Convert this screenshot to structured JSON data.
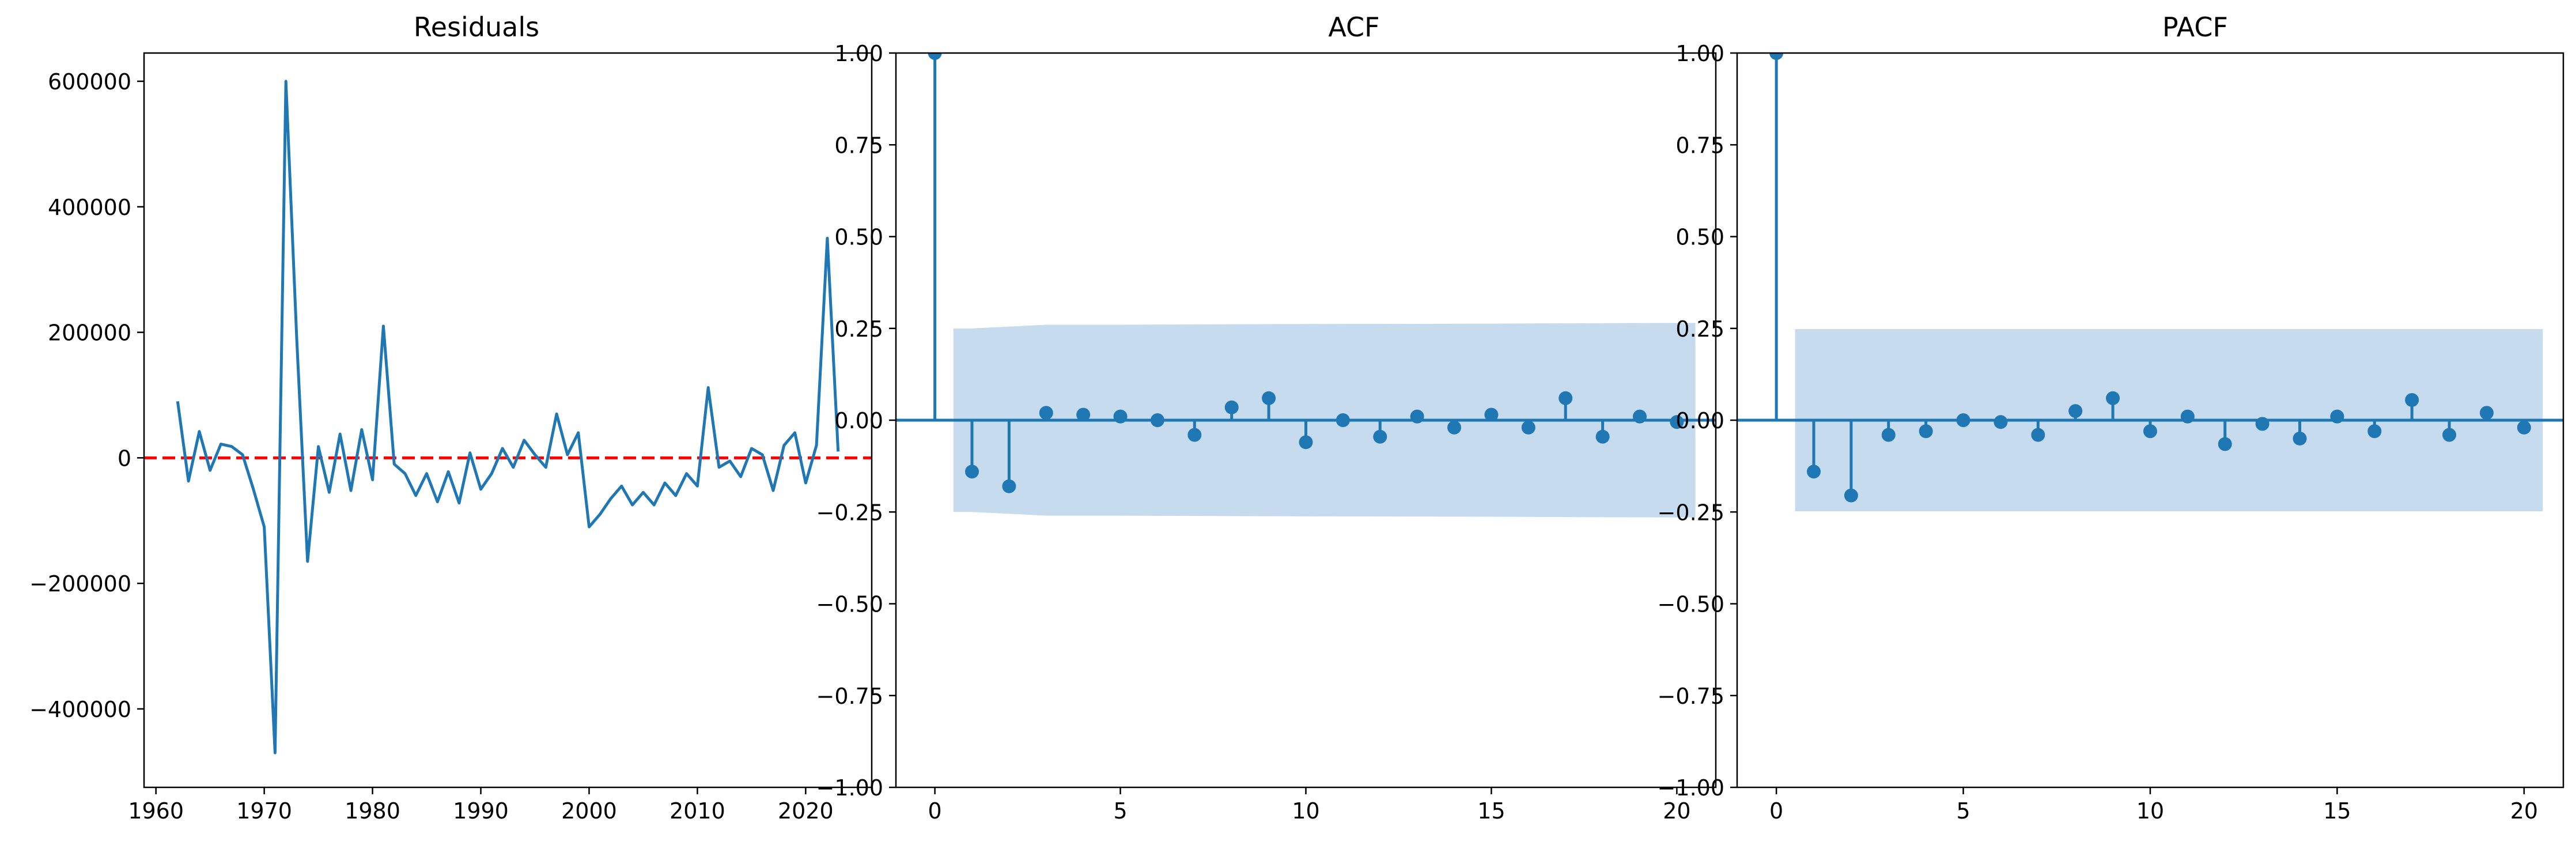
{
  "colors": {
    "series": "#1f77b4",
    "band": "#c6dbed",
    "zero_line": "#ff0000",
    "axis": "#000000",
    "background": "#ffffff"
  },
  "chart_data": [
    {
      "type": "line",
      "title": "Residuals",
      "xlabel": "",
      "ylabel": "",
      "xlim": [
        1958.9,
        2026.1
      ],
      "ylim": [
        -525000,
        645000
      ],
      "xticks": [
        1960,
        1970,
        1980,
        1990,
        2000,
        2010,
        2020
      ],
      "xtick_labels": [
        "1960",
        "1970",
        "1980",
        "1990",
        "2000",
        "2010",
        "2020"
      ],
      "yticks": [
        -400000,
        -200000,
        0,
        200000,
        400000,
        600000
      ],
      "ytick_labels": [
        "−400000",
        "−200000",
        "0",
        "200000",
        "400000",
        "600000"
      ],
      "grid": false,
      "reference_line": {
        "y": 0,
        "style": "dashed",
        "color": "#ff0000"
      },
      "series": [
        {
          "x": [
            1962,
            1963,
            1964,
            1965,
            1966,
            1967,
            1968,
            1969,
            1970,
            1971,
            1972,
            1973,
            1974,
            1975,
            1976,
            1977,
            1978,
            1979,
            1980,
            1981,
            1982,
            1983,
            1984,
            1985,
            1986,
            1987,
            1988,
            1989,
            1990,
            1991,
            1992,
            1993,
            1994,
            1995,
            1996,
            1997,
            1998,
            1999,
            2000,
            2001,
            2002,
            2003,
            2004,
            2005,
            2006,
            2007,
            2008,
            2009,
            2010,
            2011,
            2012,
            2013,
            2014,
            2015,
            2016,
            2017,
            2018,
            2019,
            2020,
            2021,
            2022,
            2023
          ],
          "values": [
            90000,
            -37000,
            42000,
            -20000,
            22000,
            18000,
            5000,
            -50000,
            -110000,
            -470000,
            600000,
            190000,
            -165000,
            18000,
            -55000,
            38000,
            -52000,
            45000,
            -35000,
            210000,
            -10000,
            -25000,
            -60000,
            -25000,
            -70000,
            -22000,
            -72000,
            8000,
            -50000,
            -25000,
            15000,
            -15000,
            28000,
            5000,
            -15000,
            70000,
            5000,
            40000,
            -110000,
            -90000,
            -65000,
            -45000,
            -75000,
            -55000,
            -75000,
            -40000,
            -60000,
            -25000,
            -45000,
            112000,
            -15000,
            -5000,
            -30000,
            15000,
            5000,
            -52000,
            20000,
            40000,
            -40000,
            20000,
            350000,
            10000
          ]
        }
      ]
    },
    {
      "type": "stem",
      "title": "ACF",
      "xlabel": "",
      "ylabel": "",
      "xlim": [
        -1.05,
        21.05
      ],
      "ylim": [
        -1.0,
        1.0
      ],
      "xticks": [
        0,
        5,
        10,
        15,
        20
      ],
      "xtick_labels": [
        "0",
        "5",
        "10",
        "15",
        "20"
      ],
      "yticks": [
        -1.0,
        -0.75,
        -0.5,
        -0.25,
        0.0,
        0.25,
        0.5,
        0.75,
        1.0
      ],
      "ytick_labels": [
        "−1.00",
        "−0.75",
        "−0.50",
        "−0.25",
        "0.00",
        "0.25",
        "0.50",
        "0.75",
        "1.00"
      ],
      "grid": false,
      "lags": [
        0,
        1,
        2,
        3,
        4,
        5,
        6,
        7,
        8,
        9,
        10,
        11,
        12,
        13,
        14,
        15,
        16,
        17,
        18,
        19,
        20
      ],
      "values": [
        1.0,
        -0.14,
        -0.18,
        0.02,
        0.015,
        0.01,
        0.0,
        -0.04,
        0.035,
        0.06,
        -0.06,
        0.0,
        -0.045,
        0.01,
        -0.02,
        0.015,
        -0.02,
        0.06,
        -0.045,
        0.01,
        -0.005
      ],
      "confidence_band": {
        "x": [
          0.5,
          1,
          2,
          3,
          4,
          5,
          10,
          15,
          20,
          20.5
        ],
        "upper": [
          0.25,
          0.25,
          0.255,
          0.26,
          0.26,
          0.26,
          0.262,
          0.263,
          0.265,
          0.265
        ]
      }
    },
    {
      "type": "stem",
      "title": "PACF",
      "xlabel": "",
      "ylabel": "",
      "xlim": [
        -1.05,
        21.05
      ],
      "ylim": [
        -1.0,
        1.0
      ],
      "xticks": [
        0,
        5,
        10,
        15,
        20
      ],
      "xtick_labels": [
        "0",
        "5",
        "10",
        "15",
        "20"
      ],
      "yticks": [
        -1.0,
        -0.75,
        -0.5,
        -0.25,
        0.0,
        0.25,
        0.5,
        0.75,
        1.0
      ],
      "ytick_labels": [
        "−1.00",
        "−0.75",
        "−0.50",
        "−0.25",
        "0.00",
        "0.25",
        "0.50",
        "0.75",
        "1.00"
      ],
      "grid": false,
      "lags": [
        0,
        1,
        2,
        3,
        4,
        5,
        6,
        7,
        8,
        9,
        10,
        11,
        12,
        13,
        14,
        15,
        16,
        17,
        18,
        19,
        20
      ],
      "values": [
        1.0,
        -0.14,
        -0.205,
        -0.04,
        -0.03,
        0.0,
        -0.005,
        -0.04,
        0.025,
        0.06,
        -0.03,
        0.01,
        -0.065,
        -0.01,
        -0.05,
        0.01,
        -0.03,
        0.055,
        -0.04,
        0.02,
        -0.02
      ],
      "confidence_band": {
        "x": [
          0.5,
          20.5
        ],
        "upper": [
          0.248,
          0.248
        ]
      }
    }
  ]
}
